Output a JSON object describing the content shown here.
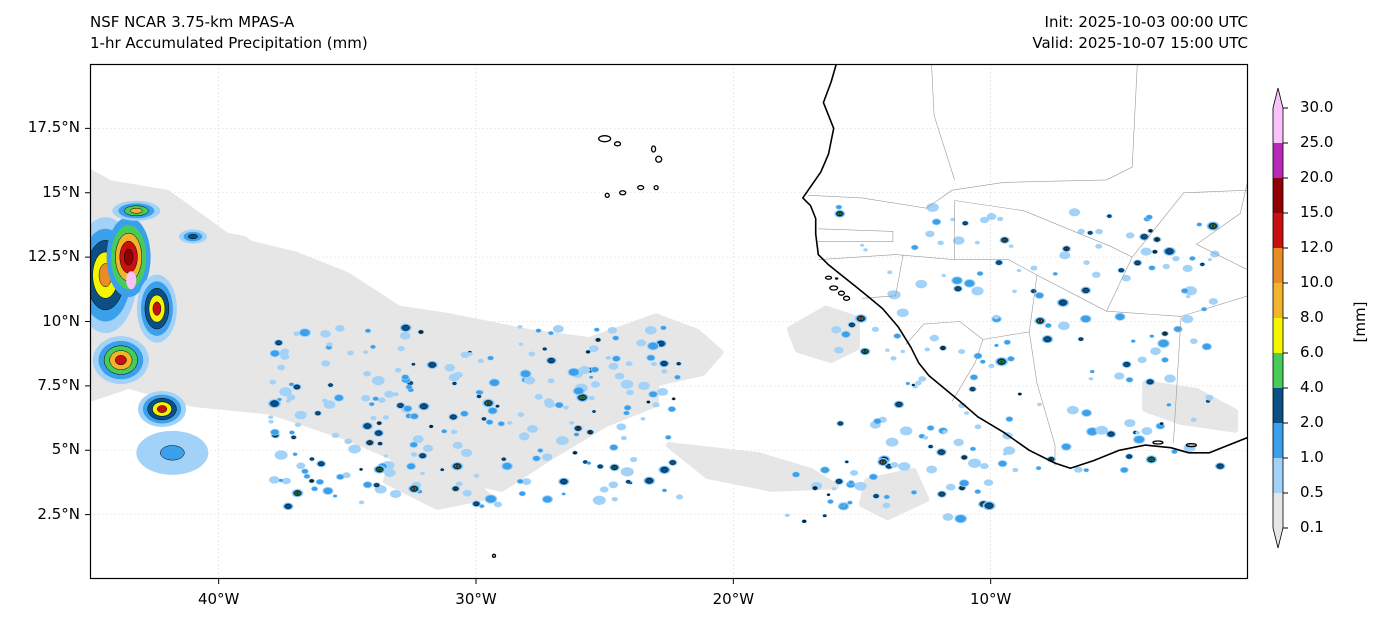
{
  "title": {
    "left_line1": "NSF NCAR 3.75-km MPAS-A",
    "left_line2": "1-hr Accumulated Precipitation (mm)",
    "right_line1": "Init: 2025-10-03 00:00 UTC",
    "right_line2": "Valid: 2025-10-07 15:00 UTC"
  },
  "map": {
    "extent": {
      "lon_min": -45,
      "lon_max": 0,
      "lat_min": 0,
      "lat_max": 20
    },
    "y_ticks": [
      {
        "lat": 17.5,
        "label": "17.5°N"
      },
      {
        "lat": 15,
        "label": "15°N"
      },
      {
        "lat": 12.5,
        "label": "12.5°N"
      },
      {
        "lat": 10,
        "label": "10°N"
      },
      {
        "lat": 7.5,
        "label": "7.5°N"
      },
      {
        "lat": 5,
        "label": "5°N"
      },
      {
        "lat": 2.5,
        "label": "2.5°N"
      }
    ],
    "x_ticks": [
      {
        "lon": -40,
        "label": "40°W"
      },
      {
        "lon": -30,
        "label": "30°W"
      },
      {
        "lon": -20,
        "label": "20°W"
      },
      {
        "lon": -10,
        "label": "10°W"
      }
    ],
    "gridlines": true
  },
  "colorbar": {
    "unit_label": "[mm]",
    "levels": [
      "0.1",
      "0.5",
      "1.0",
      "2.0",
      "4.0",
      "6.0",
      "8.0",
      "10.0",
      "12.0",
      "15.0",
      "20.0",
      "25.0",
      "30.0"
    ],
    "colors": [
      "#e6e6e6",
      "#a2d2f7",
      "#3ba0ec",
      "#0b4f84",
      "#47cc5a",
      "#f5f500",
      "#f2b42a",
      "#e88c26",
      "#c81010",
      "#900000",
      "#b72ab8",
      "#f8c3f8"
    ],
    "extend": "both"
  },
  "colors": {
    "coastline": "#000000",
    "borders": "#9a9a9a",
    "gridline": "#dcdcdc"
  }
}
